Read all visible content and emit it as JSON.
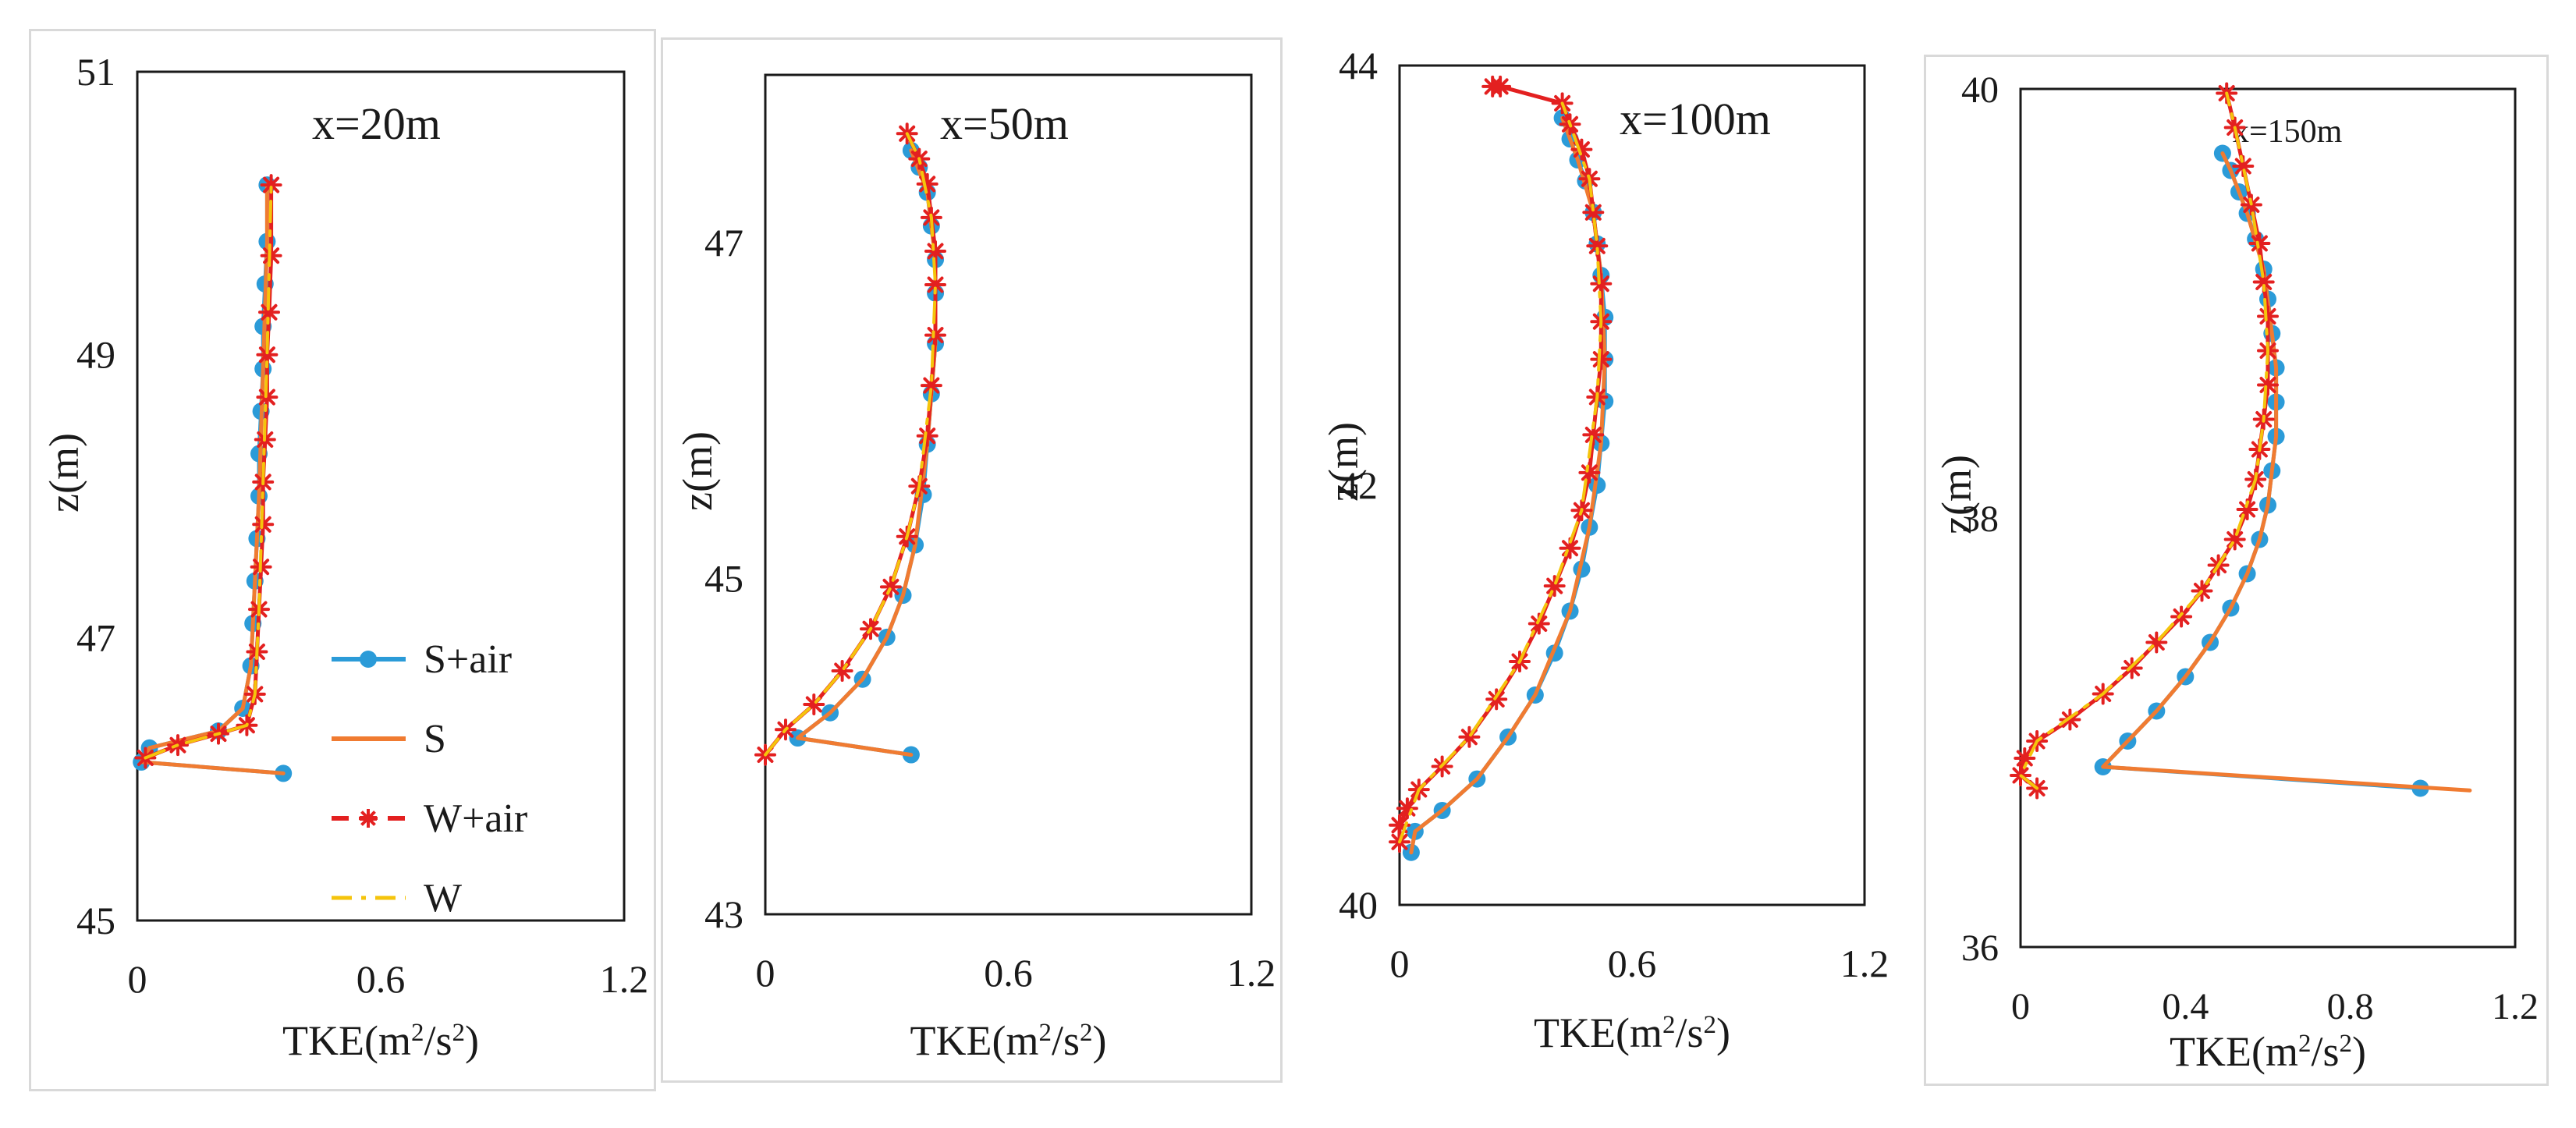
{
  "chart_data": [
    {
      "type": "line",
      "title": "x=20m",
      "xlabel": "TKE(m²/s²)",
      "ylabel": "z(m)",
      "xlim": [
        0,
        1.2
      ],
      "ylim": [
        45,
        51
      ],
      "xticks": [
        "0",
        "0.6",
        "1.2"
      ],
      "yticks": [
        "45",
        "47",
        "49",
        "51"
      ],
      "legend": {
        "position": "bottom-right",
        "entries": [
          "S+air",
          "S",
          "W+air",
          "W"
        ]
      },
      "series": [
        {
          "name": "S+air",
          "color": "#2b9bd8",
          "marker": "circle",
          "x": [
            0.36,
            0.01,
            0.03,
            0.2,
            0.26,
            0.28,
            0.285,
            0.29,
            0.295,
            0.3,
            0.3,
            0.305,
            0.31,
            0.31,
            0.315,
            0.32,
            0.32
          ],
          "y": [
            46.04,
            46.12,
            46.22,
            46.34,
            46.5,
            46.8,
            47.1,
            47.4,
            47.7,
            48.0,
            48.3,
            48.6,
            48.9,
            49.2,
            49.5,
            49.8,
            50.2
          ]
        },
        {
          "name": "S",
          "color": "#f07b31",
          "marker": "none",
          "x": [
            0.36,
            0.01,
            0.03,
            0.2,
            0.26,
            0.28,
            0.29,
            0.3,
            0.31,
            0.32,
            0.32
          ],
          "y": [
            46.04,
            46.12,
            46.22,
            46.34,
            46.5,
            46.8,
            47.4,
            48.0,
            48.9,
            49.8,
            50.2
          ]
        },
        {
          "name": "W+air",
          "color": "#e32020",
          "marker": "star",
          "x": [
            0.02,
            0.1,
            0.2,
            0.27,
            0.29,
            0.295,
            0.3,
            0.305,
            0.31,
            0.31,
            0.315,
            0.32,
            0.32,
            0.325,
            0.33,
            0.33
          ],
          "y": [
            46.15,
            46.24,
            46.32,
            46.38,
            46.6,
            46.9,
            47.2,
            47.5,
            47.8,
            48.1,
            48.4,
            48.7,
            49.0,
            49.3,
            49.7,
            50.2
          ]
        },
        {
          "name": "W",
          "color": "#f5c40c",
          "marker": "none",
          "x": [
            0.02,
            0.1,
            0.2,
            0.27,
            0.29,
            0.3,
            0.31,
            0.32,
            0.33
          ],
          "y": [
            46.15,
            46.24,
            46.32,
            46.38,
            46.6,
            47.2,
            48.1,
            49.0,
            50.2
          ]
        }
      ]
    },
    {
      "type": "line",
      "title": "x=50m",
      "xlabel": "TKE(m²/s²)",
      "ylabel": "z(m)",
      "xlim": [
        0,
        1.2
      ],
      "ylim": [
        43,
        48
      ],
      "xticks": [
        "0",
        "0.6",
        "1.2"
      ],
      "yticks": [
        "43",
        "45",
        "47"
      ],
      "series": [
        {
          "name": "S+air",
          "color": "#2b9bd8",
          "marker": "circle",
          "x": [
            0.36,
            0.08,
            0.16,
            0.24,
            0.3,
            0.34,
            0.37,
            0.39,
            0.4,
            0.41,
            0.42,
            0.42,
            0.42,
            0.41,
            0.4,
            0.38,
            0.36
          ],
          "y": [
            43.95,
            44.05,
            44.2,
            44.4,
            44.65,
            44.9,
            45.2,
            45.5,
            45.8,
            46.1,
            46.4,
            46.7,
            46.9,
            47.1,
            47.3,
            47.45,
            47.55
          ]
        },
        {
          "name": "S",
          "color": "#f07b31",
          "marker": "none",
          "x": [
            0.36,
            0.08,
            0.16,
            0.24,
            0.3,
            0.34,
            0.37,
            0.4,
            0.42,
            0.42,
            0.4,
            0.36
          ],
          "y": [
            43.95,
            44.05,
            44.2,
            44.4,
            44.65,
            44.9,
            45.2,
            45.8,
            46.4,
            46.9,
            47.3,
            47.55
          ]
        },
        {
          "name": "W+air",
          "color": "#e32020",
          "marker": "star",
          "x": [
            0.0,
            0.05,
            0.12,
            0.19,
            0.26,
            0.31,
            0.35,
            0.38,
            0.4,
            0.41,
            0.42,
            0.42,
            0.42,
            0.41,
            0.4,
            0.38,
            0.35
          ],
          "y": [
            43.95,
            44.1,
            44.25,
            44.45,
            44.7,
            44.95,
            45.25,
            45.55,
            45.85,
            46.15,
            46.45,
            46.75,
            46.95,
            47.15,
            47.35,
            47.5,
            47.65
          ]
        },
        {
          "name": "W",
          "color": "#f5c40c",
          "marker": "none",
          "x": [
            0.0,
            0.05,
            0.12,
            0.19,
            0.26,
            0.31,
            0.35,
            0.38,
            0.41,
            0.42,
            0.41,
            0.38,
            0.35
          ],
          "y": [
            43.95,
            44.1,
            44.25,
            44.45,
            44.7,
            44.95,
            45.25,
            45.55,
            46.15,
            46.75,
            47.15,
            47.5,
            47.65
          ]
        }
      ]
    },
    {
      "type": "line",
      "title": "x=100m",
      "xlabel": "TKE(m²/s²)",
      "ylabel": "z(m)",
      "xlim": [
        0,
        1.2
      ],
      "ylim": [
        40,
        44
      ],
      "xticks": [
        "0",
        "0.6",
        "1.2"
      ],
      "yticks": [
        "40",
        "42",
        "44"
      ],
      "series": [
        {
          "name": "S+air",
          "color": "#2b9bd8",
          "marker": "circle",
          "x": [
            0.03,
            0.04,
            0.11,
            0.2,
            0.28,
            0.35,
            0.4,
            0.44,
            0.47,
            0.49,
            0.51,
            0.52,
            0.53,
            0.53,
            0.53,
            0.52,
            0.51,
            0.5,
            0.48,
            0.46,
            0.44,
            0.42
          ],
          "y": [
            40.25,
            40.35,
            40.45,
            40.6,
            40.8,
            41.0,
            41.2,
            41.4,
            41.6,
            41.8,
            42.0,
            42.2,
            42.4,
            42.6,
            42.8,
            43.0,
            43.15,
            43.3,
            43.45,
            43.55,
            43.65,
            43.75
          ]
        },
        {
          "name": "S",
          "color": "#f07b31",
          "marker": "none",
          "x": [
            0.03,
            0.04,
            0.11,
            0.2,
            0.28,
            0.35,
            0.44,
            0.49,
            0.52,
            0.53,
            0.52,
            0.5,
            0.46,
            0.42
          ],
          "y": [
            40.25,
            40.35,
            40.45,
            40.6,
            40.8,
            41.0,
            41.4,
            41.8,
            42.2,
            42.6,
            43.0,
            43.3,
            43.55,
            43.75
          ]
        },
        {
          "name": "W+air",
          "color": "#e32020",
          "marker": "star",
          "x": [
            0.0,
            0.0,
            0.02,
            0.05,
            0.11,
            0.18,
            0.25,
            0.31,
            0.36,
            0.4,
            0.44,
            0.47,
            0.49,
            0.5,
            0.51,
            0.52,
            0.52,
            0.52,
            0.51,
            0.5,
            0.49,
            0.47,
            0.44,
            0.42,
            0.26,
            0.24
          ],
          "y": [
            40.3,
            40.38,
            40.46,
            40.55,
            40.66,
            40.8,
            40.98,
            41.16,
            41.34,
            41.52,
            41.7,
            41.88,
            42.06,
            42.24,
            42.42,
            42.6,
            42.78,
            42.96,
            43.14,
            43.3,
            43.46,
            43.6,
            43.72,
            43.82,
            43.9,
            43.9
          ]
        },
        {
          "name": "W",
          "color": "#f5c40c",
          "marker": "none",
          "x": [
            0.0,
            0.05,
            0.18,
            0.31,
            0.4,
            0.47,
            0.51,
            0.52,
            0.51,
            0.49,
            0.44,
            0.42
          ],
          "y": [
            40.3,
            40.55,
            40.8,
            41.16,
            41.52,
            41.88,
            42.42,
            42.78,
            43.14,
            43.46,
            43.72,
            43.82
          ]
        }
      ]
    },
    {
      "type": "line",
      "title": "x=150m",
      "xlabel": "TKE(m²/s²)",
      "ylabel": "z(m)",
      "xlim": [
        0,
        1.2
      ],
      "ylim": [
        36,
        40
      ],
      "xticks": [
        "0",
        "0.4",
        "0.8",
        "1.2"
      ],
      "yticks": [
        "36",
        "38",
        "40"
      ],
      "series": [
        {
          "name": "S+air",
          "color": "#2b9bd8",
          "marker": "circle",
          "x": [
            0.97,
            0.2,
            0.26,
            0.33,
            0.4,
            0.46,
            0.51,
            0.55,
            0.58,
            0.6,
            0.61,
            0.62,
            0.62,
            0.62,
            0.61,
            0.6,
            0.59,
            0.57,
            0.55,
            0.53,
            0.51,
            0.49
          ],
          "y": [
            36.74,
            36.84,
            36.96,
            37.1,
            37.26,
            37.42,
            37.58,
            37.74,
            37.9,
            38.06,
            38.22,
            38.38,
            38.54,
            38.7,
            38.86,
            39.02,
            39.16,
            39.3,
            39.42,
            39.52,
            39.62,
            39.7
          ]
        },
        {
          "name": "S",
          "color": "#f07b31",
          "marker": "none",
          "x": [
            1.09,
            0.2,
            0.26,
            0.33,
            0.4,
            0.46,
            0.51,
            0.55,
            0.58,
            0.6,
            0.62,
            0.62,
            0.61,
            0.59,
            0.55,
            0.51,
            0.49
          ],
          "y": [
            36.73,
            36.84,
            36.96,
            37.1,
            37.26,
            37.42,
            37.58,
            37.74,
            37.9,
            38.06,
            38.38,
            38.7,
            38.86,
            39.16,
            39.42,
            39.62,
            39.7
          ]
        },
        {
          "name": "W+air",
          "color": "#e32020",
          "marker": "star",
          "x": [
            0.04,
            0.0,
            0.01,
            0.04,
            0.12,
            0.2,
            0.27,
            0.33,
            0.39,
            0.44,
            0.48,
            0.52,
            0.55,
            0.57,
            0.58,
            0.59,
            0.6,
            0.6,
            0.6,
            0.59,
            0.58,
            0.56,
            0.54,
            0.52,
            0.5
          ],
          "y": [
            36.74,
            36.8,
            36.88,
            36.96,
            37.06,
            37.18,
            37.3,
            37.42,
            37.54,
            37.66,
            37.78,
            37.9,
            38.04,
            38.18,
            38.32,
            38.46,
            38.62,
            38.78,
            38.94,
            39.1,
            39.28,
            39.46,
            39.64,
            39.82,
            39.98
          ]
        },
        {
          "name": "W",
          "color": "#f5c40c",
          "marker": "none",
          "x": [
            0.04,
            0.0,
            0.04,
            0.2,
            0.33,
            0.44,
            0.52,
            0.57,
            0.59,
            0.6,
            0.59,
            0.56,
            0.52,
            0.5
          ],
          "y": [
            36.74,
            36.8,
            36.96,
            37.18,
            37.42,
            37.66,
            37.9,
            38.18,
            38.46,
            38.78,
            39.1,
            39.46,
            39.82,
            39.98
          ]
        }
      ]
    }
  ]
}
